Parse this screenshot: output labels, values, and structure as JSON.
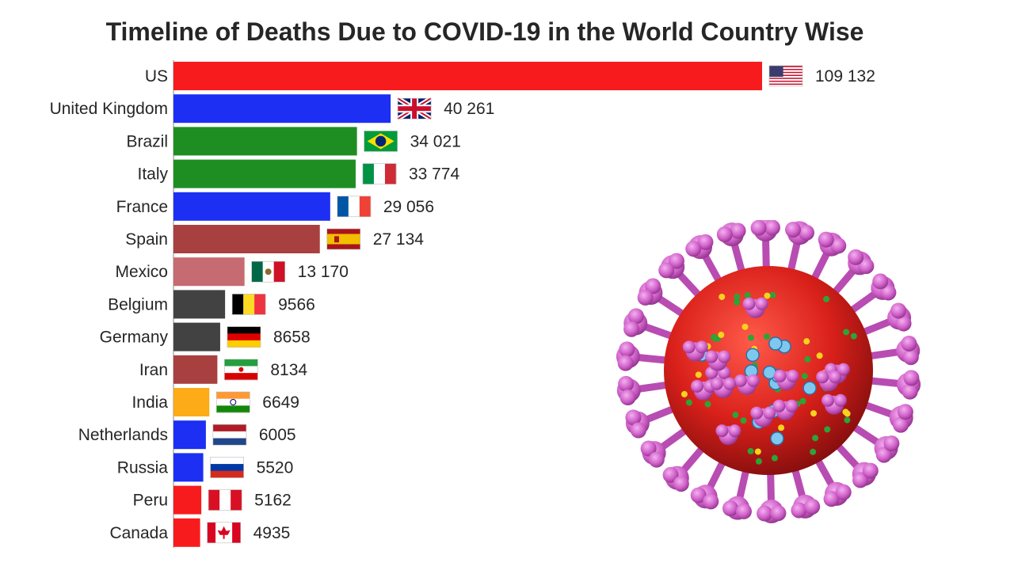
{
  "chart_data": {
    "type": "bar",
    "orientation": "horizontal",
    "title": "Timeline of Deaths Due to COVID-19 in the World Country Wise",
    "categories": [
      "US",
      "United Kingdom",
      "Brazil",
      "Italy",
      "France",
      "Spain",
      "Mexico",
      "Belgium",
      "Germany",
      "Iran",
      "India",
      "Netherlands",
      "Russia",
      "Peru",
      "Canada"
    ],
    "values": [
      109132,
      40261,
      34021,
      33774,
      29056,
      27134,
      13170,
      9566,
      8658,
      8134,
      6649,
      6005,
      5520,
      5162,
      4935
    ],
    "value_labels": [
      "109 132",
      "40 261",
      "34 021",
      "33 774",
      "29 056",
      "27 134",
      "13 170",
      "9566",
      "8658",
      "8134",
      "6649",
      "6005",
      "5520",
      "5162",
      "4935"
    ],
    "bar_colors": [
      "#f81b1d",
      "#1c2ff2",
      "#1f8e22",
      "#1f8e22",
      "#1c2ff2",
      "#a84040",
      "#c66b71",
      "#424242",
      "#424242",
      "#a84040",
      "#fdab16",
      "#1c2ff2",
      "#1c2ff2",
      "#f81b1d",
      "#f81b1d"
    ],
    "flags": [
      "us-flag",
      "uk-flag",
      "brazil-flag",
      "italy-flag",
      "france-flag",
      "spain-flag",
      "mexico-flag",
      "belgium-flag",
      "germany-flag",
      "iran-flag",
      "india-flag",
      "netherlands-flag",
      "russia-flag",
      "peru-flag",
      "canada-flag"
    ],
    "xlim": [
      0,
      109132
    ],
    "grid": false,
    "legend": "none"
  },
  "decor": {
    "image": "coronavirus-illustration"
  }
}
